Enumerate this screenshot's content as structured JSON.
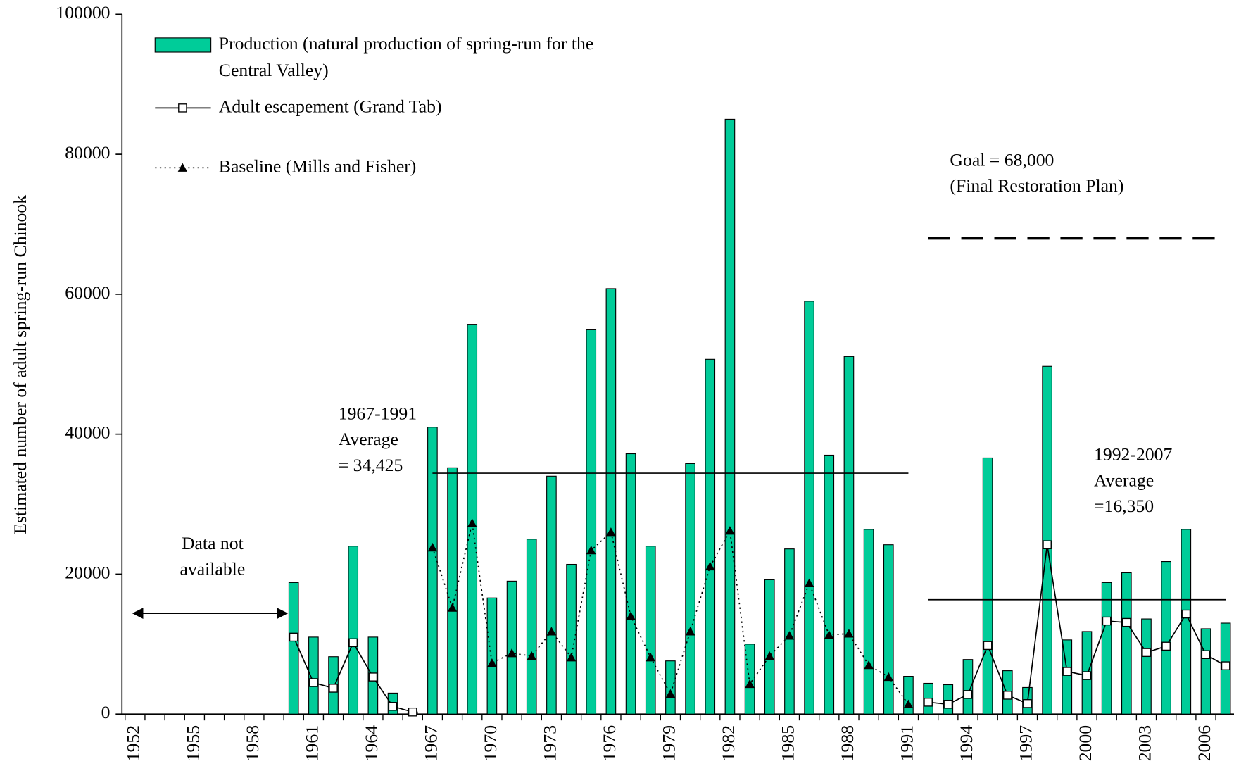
{
  "chart_data": {
    "type": "bar_line",
    "y_label": "Estimated number of adult spring-run Chinook",
    "categories": [
      "1952",
      null,
      null,
      "1955",
      null,
      null,
      "1958",
      null,
      null,
      "1961",
      null,
      null,
      "1964",
      null,
      null,
      "1967",
      null,
      null,
      "1970",
      null,
      null,
      "1973",
      null,
      null,
      "1976",
      null,
      null,
      "1979",
      null,
      null,
      "1982",
      null,
      null,
      "1985",
      null,
      null,
      "1988",
      null,
      null,
      "1991",
      null,
      null,
      "1994",
      null,
      null,
      "1997",
      null,
      null,
      "2000",
      null,
      null,
      "2003",
      null,
      null,
      "2006",
      null
    ],
    "ylim": [
      0,
      100000
    ],
    "yticks": [
      0,
      20000,
      40000,
      60000,
      80000,
      100000
    ],
    "series": [
      {
        "name": "Production (natural production of spring-run for the Central Valley)",
        "type": "bar",
        "color": "#00cc99",
        "values": [
          null,
          null,
          null,
          null,
          null,
          null,
          null,
          null,
          18800,
          11000,
          8200,
          24000,
          11000,
          3000,
          300,
          41000,
          35200,
          55700,
          16600,
          19000,
          25000,
          34000,
          21400,
          55000,
          60800,
          37200,
          24000,
          7600,
          35800,
          50700,
          85000,
          10000,
          19200,
          23600,
          59000,
          37000,
          51100,
          26400,
          24200,
          5400,
          4400,
          4200,
          7800,
          36600,
          6200,
          3800,
          49700,
          10600,
          11800,
          18800,
          20200,
          13600,
          21800,
          26400,
          12200,
          13000
        ]
      },
      {
        "name": "Adult escapement (Grand Tab)",
        "type": "line",
        "marker": "square",
        "color": "#000000",
        "values": [
          null,
          null,
          null,
          null,
          null,
          null,
          null,
          null,
          11000,
          4500,
          3700,
          10200,
          5300,
          1100,
          300,
          null,
          null,
          null,
          null,
          null,
          null,
          null,
          null,
          null,
          null,
          null,
          null,
          null,
          null,
          null,
          null,
          null,
          null,
          null,
          null,
          null,
          null,
          null,
          null,
          null,
          1700,
          1400,
          2800,
          9800,
          2700,
          1500,
          24200,
          6100,
          5500,
          13300,
          13100,
          8800,
          9700,
          14300,
          8500,
          6900
        ]
      },
      {
        "name": "Baseline (Mills and Fisher)",
        "type": "line",
        "marker": "triangle",
        "dash": "dotted",
        "color": "#000000",
        "values": [
          null,
          null,
          null,
          null,
          null,
          null,
          null,
          null,
          null,
          null,
          null,
          null,
          null,
          null,
          null,
          23800,
          15200,
          27300,
          7300,
          8700,
          8300,
          11800,
          8100,
          23400,
          26000,
          14000,
          8100,
          2900,
          11800,
          21100,
          26200,
          4300,
          8300,
          11200,
          18700,
          11300,
          11500,
          7000,
          5300,
          1400,
          null,
          null,
          null,
          null,
          null,
          null,
          null,
          null,
          null,
          null,
          null,
          null,
          null,
          null,
          null,
          null
        ]
      }
    ],
    "annotations": [
      {
        "lines": [
          "1967-1991",
          "Average",
          "= 34,425"
        ],
        "value": 34425
      },
      {
        "lines": [
          "1992-2007",
          "Average",
          "=16,350"
        ],
        "value": 16350
      },
      {
        "lines": [
          "Goal = 68,000",
          "(Final Restoration Plan)"
        ],
        "value": 68000,
        "dash": "dashed"
      },
      {
        "lines": [
          "Data not",
          "available"
        ]
      }
    ]
  }
}
